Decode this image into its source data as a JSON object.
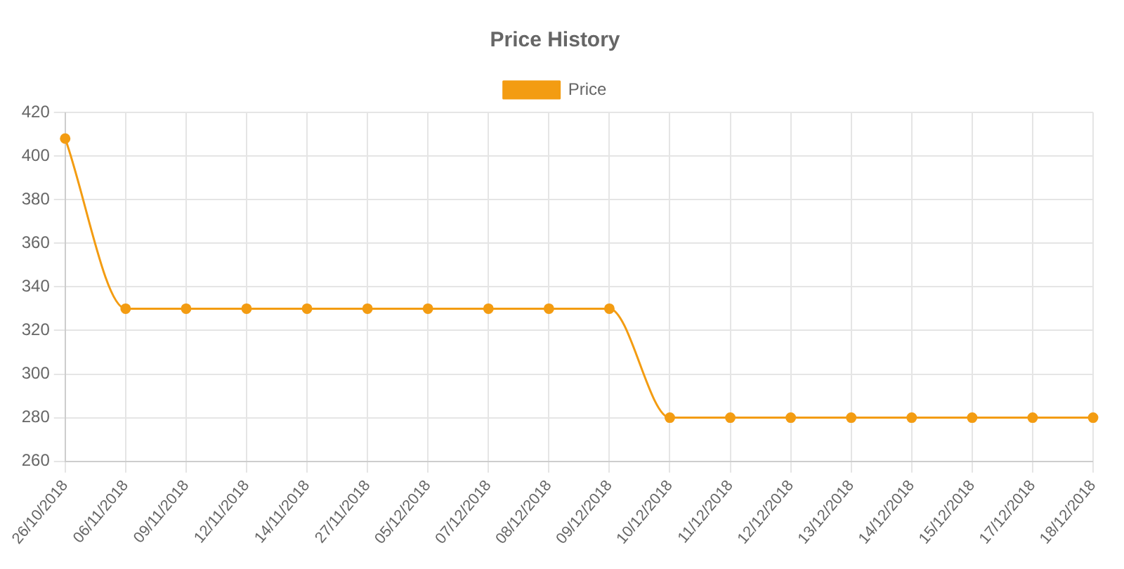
{
  "chart_data": {
    "type": "line",
    "title": "Price History",
    "categories": [
      "26/10/2018",
      "06/11/2018",
      "09/11/2018",
      "12/11/2018",
      "14/11/2018",
      "27/11/2018",
      "05/12/2018",
      "07/12/2018",
      "08/12/2018",
      "09/12/2018",
      "10/12/2018",
      "11/12/2018",
      "12/12/2018",
      "13/12/2018",
      "14/12/2018",
      "15/12/2018",
      "17/12/2018",
      "18/12/2018"
    ],
    "series": [
      {
        "name": "Price",
        "color": "#f39c12",
        "values": [
          408,
          330,
          330,
          330,
          330,
          330,
          330,
          330,
          330,
          330,
          280,
          280,
          280,
          280,
          280,
          280,
          280,
          280
        ]
      }
    ],
    "ylim": [
      260,
      420
    ],
    "yticks": [
      260,
      280,
      300,
      320,
      340,
      360,
      380,
      400,
      420
    ],
    "grid": true,
    "legend": "top",
    "marker": "circle"
  }
}
